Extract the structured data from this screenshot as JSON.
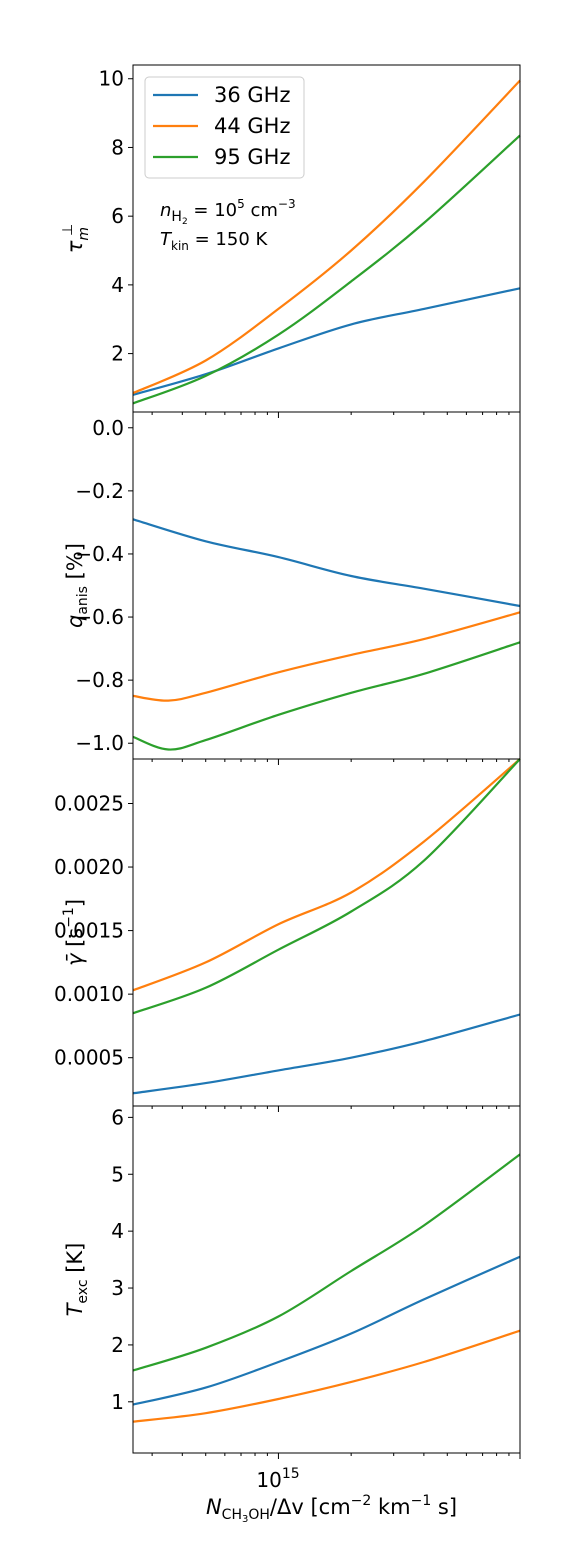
{
  "chart_data": [
    {
      "type": "line",
      "panel": "tau",
      "ylabel_base": "τ",
      "ylabel_sup": "⊥",
      "ylabel_sub": "m",
      "xscale": "log",
      "xlim": [
        250000000000000.0,
        1e+16
      ],
      "ylim": [
        0.3,
        10.4
      ],
      "yticks": [
        2,
        4,
        6,
        8,
        10
      ],
      "yticklabels": [
        "2",
        "4",
        "6",
        "8",
        "10"
      ],
      "legend": {
        "placement": "top-left",
        "entries": [
          "36 GHz",
          "44 GHz",
          "95 GHz"
        ]
      },
      "annotation": {
        "line1_sym": "n",
        "line1_sub": "H",
        "line1_subsub": "2",
        "line1_eq": " = 10",
        "line1_exp": "5",
        "line1_unit": " cm",
        "line1_unit_exp": "−3",
        "line2_sym": "T",
        "line2_sub": "kin",
        "line2_eq": " = 150 K"
      },
      "series": [
        {
          "name": "36 GHz",
          "color": "#1f77b4",
          "x": [
            250000000000000.0,
            500000000000000.0,
            1000000000000000.0,
            2000000000000000.0,
            4000000000000000.0,
            1e+16
          ],
          "y": [
            0.8,
            1.4,
            2.15,
            2.85,
            3.3,
            3.9
          ]
        },
        {
          "name": "44 GHz",
          "color": "#ff7f0e",
          "x": [
            250000000000000.0,
            500000000000000.0,
            1000000000000000.0,
            2000000000000000.0,
            4000000000000000.0,
            1e+16
          ],
          "y": [
            0.85,
            1.8,
            3.3,
            5.0,
            7.0,
            9.95
          ]
        },
        {
          "name": "95 GHz",
          "color": "#2ca02c",
          "x": [
            250000000000000.0,
            500000000000000.0,
            1000000000000000.0,
            2000000000000000.0,
            4000000000000000.0,
            1e+16
          ],
          "y": [
            0.55,
            1.35,
            2.55,
            4.1,
            5.8,
            8.35
          ]
        }
      ]
    },
    {
      "type": "line",
      "panel": "q",
      "ylabel_base": "q",
      "ylabel_sub": "anis",
      "ylabel_tail": " [%]",
      "xscale": "log",
      "xlim": [
        250000000000000.0,
        1e+16
      ],
      "ylim": [
        -1.05,
        0.05
      ],
      "yticks": [
        0.0,
        -0.2,
        -0.4,
        -0.6,
        -0.8,
        -1.0
      ],
      "yticklabels": [
        "0.0",
        "−0.2",
        "−0.4",
        "−0.6",
        "−0.8",
        "−1.0"
      ],
      "series": [
        {
          "name": "36 GHz",
          "color": "#1f77b4",
          "x": [
            250000000000000.0,
            500000000000000.0,
            1000000000000000.0,
            2000000000000000.0,
            4000000000000000.0,
            1e+16
          ],
          "y": [
            -0.29,
            -0.36,
            -0.41,
            -0.47,
            -0.51,
            -0.565
          ]
        },
        {
          "name": "44 GHz",
          "color": "#ff7f0e",
          "x": [
            250000000000000.0,
            350000000000000.0,
            500000000000000.0,
            1000000000000000.0,
            2000000000000000.0,
            4000000000000000.0,
            1e+16
          ],
          "y": [
            -0.85,
            -0.865,
            -0.84,
            -0.775,
            -0.72,
            -0.67,
            -0.585
          ]
        },
        {
          "name": "95 GHz",
          "color": "#2ca02c",
          "x": [
            250000000000000.0,
            350000000000000.0,
            500000000000000.0,
            1000000000000000.0,
            2000000000000000.0,
            4000000000000000.0,
            1e+16
          ],
          "y": [
            -0.98,
            -1.02,
            -0.99,
            -0.91,
            -0.84,
            -0.78,
            -0.68
          ]
        }
      ]
    },
    {
      "type": "line",
      "panel": "gamma",
      "ylabel_base": "γ̄",
      "ylabel_tail": " [s",
      "ylabel_sup": "−1",
      "ylabel_close": "]",
      "xscale": "log",
      "xlim": [
        250000000000000.0,
        1e+16
      ],
      "ylim": [
        0.00012,
        0.00285
      ],
      "yticks": [
        0.0005,
        0.001,
        0.0015,
        0.002,
        0.0025
      ],
      "yticklabels": [
        "0.0005",
        "0.0010",
        "0.0015",
        "0.0020",
        "0.0025"
      ],
      "series": [
        {
          "name": "36 GHz",
          "color": "#1f77b4",
          "x": [
            250000000000000.0,
            500000000000000.0,
            1000000000000000.0,
            2000000000000000.0,
            4000000000000000.0,
            1e+16
          ],
          "y": [
            0.00022,
            0.0003,
            0.0004,
            0.0005,
            0.00063,
            0.00084
          ]
        },
        {
          "name": "44 GHz",
          "color": "#ff7f0e",
          "x": [
            250000000000000.0,
            500000000000000.0,
            1000000000000000.0,
            2000000000000000.0,
            4000000000000000.0,
            1e+16
          ],
          "y": [
            0.00103,
            0.00125,
            0.00155,
            0.0018,
            0.0022,
            0.00285
          ]
        },
        {
          "name": "95 GHz",
          "color": "#2ca02c",
          "x": [
            250000000000000.0,
            500000000000000.0,
            1000000000000000.0,
            2000000000000000.0,
            4000000000000000.0,
            1e+16
          ],
          "y": [
            0.00085,
            0.00105,
            0.00135,
            0.00165,
            0.00205,
            0.00285
          ]
        }
      ]
    },
    {
      "type": "line",
      "panel": "texc",
      "ylabel_base": "T",
      "ylabel_sub": "exc",
      "ylabel_tail": " [K]",
      "xscale": "log",
      "xlim": [
        250000000000000.0,
        1e+16
      ],
      "ylim": [
        0.1,
        6.2
      ],
      "yticks": [
        1,
        2,
        3,
        4,
        5,
        6
      ],
      "yticklabels": [
        "1",
        "2",
        "3",
        "4",
        "5",
        "6"
      ],
      "xtick_label_base": "10",
      "xtick_label_exp": "15",
      "xlabel_sym": "N",
      "xlabel_sub": "CH",
      "xlabel_subsub": "3",
      "xlabel_sub2": "OH",
      "xlabel_mid": "/Δv [cm",
      "xlabel_exp1": "−2",
      "xlabel_mid2": " km",
      "xlabel_exp2": "−1",
      "xlabel_end": " s]",
      "series": [
        {
          "name": "36 GHz",
          "color": "#1f77b4",
          "x": [
            250000000000000.0,
            500000000000000.0,
            1000000000000000.0,
            2000000000000000.0,
            4000000000000000.0,
            1e+16
          ],
          "y": [
            0.95,
            1.25,
            1.7,
            2.2,
            2.8,
            3.55
          ]
        },
        {
          "name": "44 GHz",
          "color": "#ff7f0e",
          "x": [
            250000000000000.0,
            500000000000000.0,
            1000000000000000.0,
            2000000000000000.0,
            4000000000000000.0,
            1e+16
          ],
          "y": [
            0.65,
            0.8,
            1.05,
            1.35,
            1.7,
            2.25
          ]
        },
        {
          "name": "95 GHz",
          "color": "#2ca02c",
          "x": [
            250000000000000.0,
            500000000000000.0,
            1000000000000000.0,
            2000000000000000.0,
            4000000000000000.0,
            1e+16
          ],
          "y": [
            1.55,
            1.95,
            2.5,
            3.3,
            4.1,
            5.35
          ]
        }
      ]
    }
  ]
}
